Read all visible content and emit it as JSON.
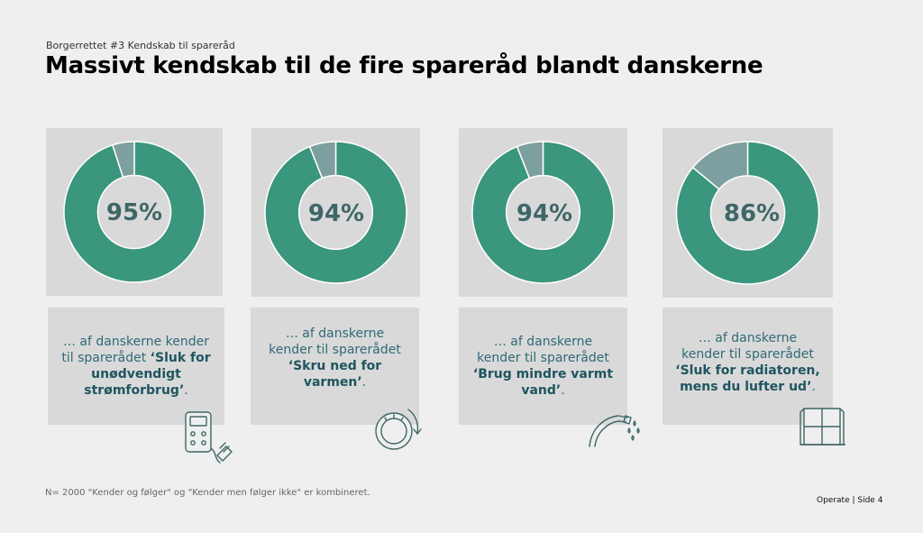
{
  "header": {
    "subtitle": "Borgerrettet #3 Kendskab til spareråd",
    "title": "Massivt kendskab til de fire spareråd blandt danskerne"
  },
  "colors": {
    "known": "#3a967c",
    "unknown": "#7e9f9f",
    "panel": "#d9d9d9",
    "text": "#2f6a75"
  },
  "chart_data": [
    {
      "type": "pie",
      "values": [
        95,
        5
      ],
      "center_label": "95%"
    },
    {
      "type": "pie",
      "values": [
        94,
        6
      ],
      "center_label": "94%"
    },
    {
      "type": "pie",
      "values": [
        94,
        6
      ],
      "center_label": "94%"
    },
    {
      "type": "pie",
      "values": [
        86,
        14
      ],
      "center_label": "86%"
    }
  ],
  "cards": [
    {
      "text_pre": "… af danskerne kender til sparerådet ",
      "text_bold": "‘Sluk for unødvendigt strømforbrug’",
      "text_post": ".",
      "icon": "power-meter-icon"
    },
    {
      "text_pre": "… af danskerne kender til sparerådet ",
      "text_bold": "‘Skru ned for varmen’",
      "text_post": ".",
      "icon": "thermostat-icon"
    },
    {
      "text_pre": "… af danskerne kender til sparerådet ",
      "text_bold": "‘Brug mindre varmt vand’",
      "text_post": ".",
      "icon": "shower-icon"
    },
    {
      "text_pre": "… af danskerne kender til sparerådet ",
      "text_bold": "‘Sluk for radiatoren, mens du lufter ud’",
      "text_post": ".",
      "icon": "window-icon"
    }
  ],
  "footer": {
    "note": "N= 2000 \"Kender og følger\" og \"Kender men følger ikke\" er kombineret.",
    "page": "Operate  |  Side  4"
  }
}
